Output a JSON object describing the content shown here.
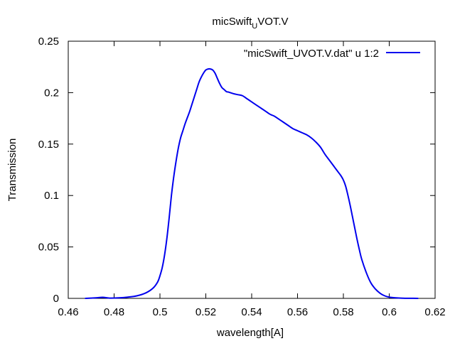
{
  "chart_data": {
    "type": "line",
    "title": "micSwift",
    "title_subscript": "U",
    "title_suffix": "VOT.V",
    "xlabel": "wavelength[A]",
    "ylabel": "Transmission",
    "xlim": [
      0.46,
      0.62
    ],
    "ylim": [
      0,
      0.25
    ],
    "x_ticks": [
      "0.46",
      "0.48",
      "0.5",
      "0.52",
      "0.54",
      "0.56",
      "0.58",
      "0.6",
      "0.62"
    ],
    "y_ticks": [
      "0",
      "0.05",
      "0.1",
      "0.15",
      "0.2",
      "0.25"
    ],
    "grid": false,
    "legend_position": "top-right",
    "series": [
      {
        "name": "\"micSwift_UVOT.V.dat\" u 1:2",
        "color": "#0000ee",
        "x": [
          0.4675,
          0.472,
          0.475,
          0.478,
          0.482,
          0.486,
          0.49,
          0.494,
          0.497,
          0.499,
          0.5,
          0.501,
          0.502,
          0.503,
          0.504,
          0.505,
          0.506,
          0.507,
          0.508,
          0.509,
          0.51,
          0.511,
          0.512,
          0.513,
          0.514,
          0.515,
          0.516,
          0.517,
          0.518,
          0.519,
          0.52,
          0.521,
          0.522,
          0.523,
          0.524,
          0.525,
          0.526,
          0.527,
          0.528,
          0.529,
          0.53,
          0.532,
          0.534,
          0.536,
          0.538,
          0.54,
          0.542,
          0.544,
          0.546,
          0.548,
          0.55,
          0.552,
          0.554,
          0.556,
          0.558,
          0.56,
          0.562,
          0.564,
          0.566,
          0.568,
          0.57,
          0.572,
          0.574,
          0.576,
          0.578,
          0.579,
          0.58,
          0.581,
          0.582,
          0.583,
          0.584,
          0.585,
          0.586,
          0.587,
          0.588,
          0.59,
          0.592,
          0.594,
          0.596,
          0.598,
          0.6,
          0.603,
          0.606,
          0.609,
          0.6125
        ],
        "y": [
          0.0,
          0.0005,
          0.001,
          0.0003,
          0.0005,
          0.0012,
          0.0025,
          0.0055,
          0.01,
          0.016,
          0.022,
          0.03,
          0.042,
          0.058,
          0.078,
          0.1,
          0.118,
          0.133,
          0.146,
          0.156,
          0.163,
          0.17,
          0.176,
          0.182,
          0.189,
          0.196,
          0.203,
          0.21,
          0.215,
          0.219,
          0.222,
          0.223,
          0.223,
          0.222,
          0.219,
          0.214,
          0.209,
          0.205,
          0.203,
          0.201,
          0.2005,
          0.199,
          0.198,
          0.197,
          0.194,
          0.191,
          0.188,
          0.185,
          0.182,
          0.179,
          0.177,
          0.174,
          0.171,
          0.168,
          0.165,
          0.163,
          0.161,
          0.159,
          0.156,
          0.152,
          0.147,
          0.14,
          0.134,
          0.128,
          0.122,
          0.119,
          0.115,
          0.109,
          0.1,
          0.09,
          0.079,
          0.068,
          0.057,
          0.047,
          0.038,
          0.025,
          0.015,
          0.009,
          0.005,
          0.0025,
          0.0012,
          0.0005,
          0.0002,
          0.0001,
          0.0
        ]
      }
    ]
  }
}
